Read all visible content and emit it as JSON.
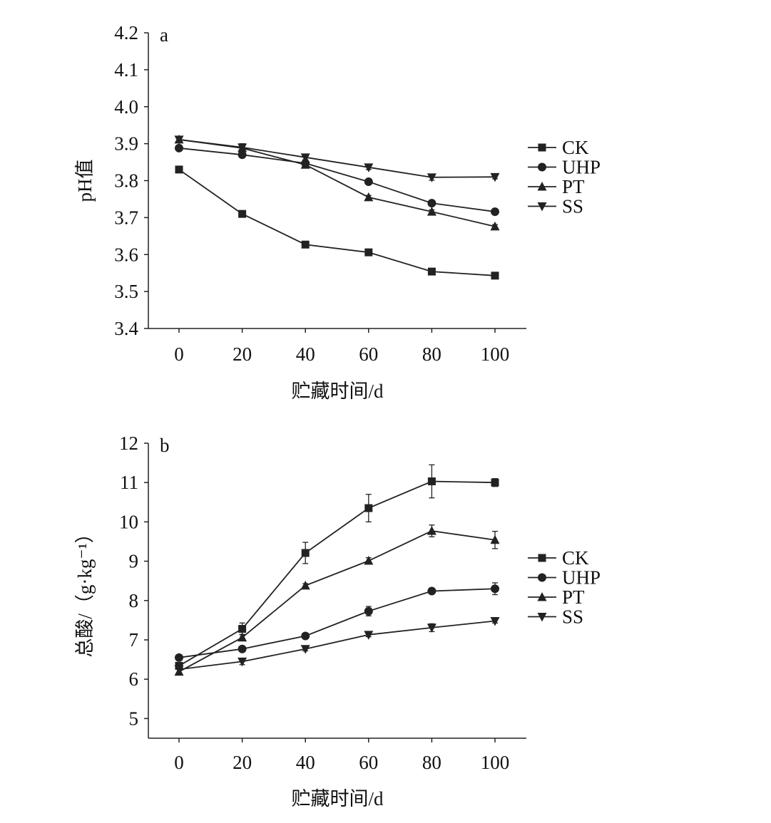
{
  "chart_data": [
    {
      "type": "line",
      "panel_label": "a",
      "xlabel": "贮藏时间/d",
      "ylabel": "pH值",
      "x": [
        0,
        20,
        40,
        60,
        80,
        100
      ],
      "xlim": [
        -10,
        110
      ],
      "ylim": [
        3.4,
        4.2
      ],
      "yticks": [
        "3.4",
        "3.5",
        "3.6",
        "3.7",
        "3.8",
        "3.9",
        "4.0",
        "4.1",
        "4.2"
      ],
      "xticks": [
        "0",
        "20",
        "40",
        "60",
        "80",
        "100"
      ],
      "legend_position": "right",
      "series": [
        {
          "name": "CK",
          "marker": "square",
          "values": [
            3.83,
            3.71,
            3.627,
            3.606,
            3.554,
            3.543
          ],
          "errors": [
            0.005,
            0.005,
            0.005,
            0.005,
            0.005,
            0.008
          ]
        },
        {
          "name": "UHP",
          "marker": "circle",
          "values": [
            3.888,
            3.87,
            3.847,
            3.797,
            3.739,
            3.716
          ],
          "errors": [
            0.005,
            0.005,
            0.005,
            0.005,
            0.005,
            0.005
          ]
        },
        {
          "name": "PT",
          "marker": "triangle-up",
          "values": [
            3.911,
            3.888,
            3.843,
            3.755,
            3.716,
            3.676
          ],
          "errors": [
            0.005,
            0.005,
            0.005,
            0.005,
            0.005,
            0.005
          ]
        },
        {
          "name": "SS",
          "marker": "triangle-down",
          "values": [
            3.911,
            3.89,
            3.863,
            3.836,
            3.809,
            3.81
          ],
          "errors": [
            0.006,
            0.01,
            0.006,
            0.006,
            0.008,
            0.005
          ]
        }
      ]
    },
    {
      "type": "line",
      "panel_label": "b",
      "xlabel": "贮藏时间/d",
      "ylabel": "总酸/（g·kg⁻¹）",
      "x": [
        0,
        20,
        40,
        60,
        80,
        100
      ],
      "xlim": [
        -10,
        110
      ],
      "ylim": [
        4.5,
        12
      ],
      "yticks": [
        "5",
        "6",
        "7",
        "8",
        "9",
        "10",
        "11",
        "12"
      ],
      "xticks": [
        "0",
        "20",
        "40",
        "60",
        "80",
        "100"
      ],
      "legend_position": "right",
      "series": [
        {
          "name": "CK",
          "marker": "square",
          "values": [
            6.34,
            7.28,
            9.21,
            10.35,
            11.03,
            11.0
          ],
          "errors": [
            0.05,
            0.15,
            0.27,
            0.35,
            0.42,
            0.1
          ]
        },
        {
          "name": "UHP",
          "marker": "circle",
          "values": [
            6.55,
            6.77,
            7.1,
            7.73,
            8.24,
            8.3
          ],
          "errors": [
            0.05,
            0.05,
            0.05,
            0.12,
            0.07,
            0.15
          ]
        },
        {
          "name": "PT",
          "marker": "triangle-up",
          "values": [
            6.19,
            7.06,
            8.38,
            9.01,
            9.77,
            9.54
          ],
          "errors": [
            0.08,
            0.08,
            0.05,
            0.08,
            0.15,
            0.22
          ]
        },
        {
          "name": "SS",
          "marker": "triangle-down",
          "values": [
            6.25,
            6.45,
            6.77,
            7.13,
            7.31,
            7.48
          ],
          "errors": [
            0.1,
            0.08,
            0.05,
            0.05,
            0.1,
            0.05
          ]
        }
      ]
    }
  ]
}
